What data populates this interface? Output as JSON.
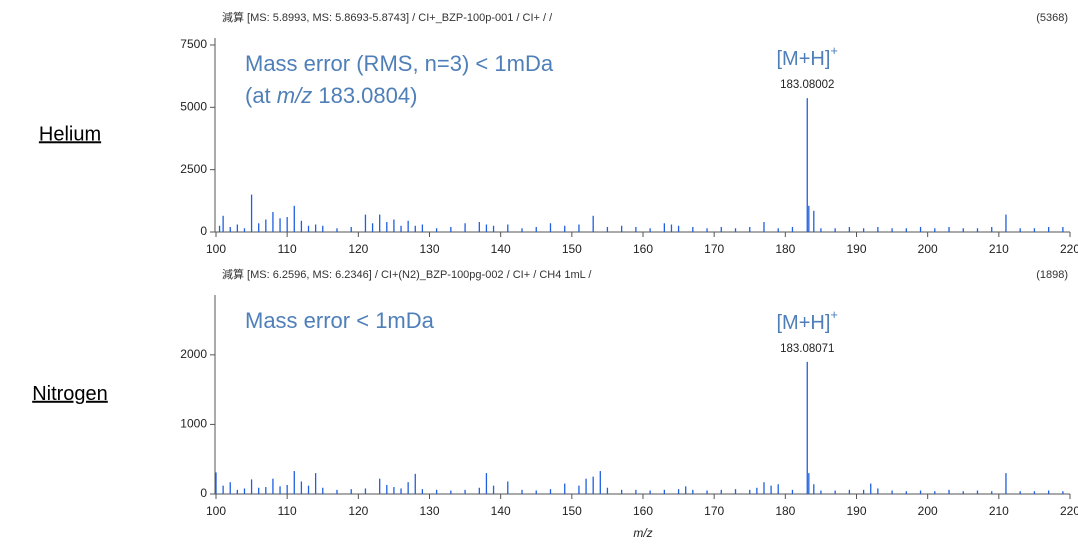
{
  "chart_data": [
    {
      "type": "bar",
      "title": "減算 [MS: 5.8993, MS: 5.8693-5.8743] / CI+_BZP-100p-001 / CI+ /  /",
      "count_label": "(5368)",
      "row_label": "Helium",
      "note": "Mass error (RMS, n=3) < 1mDa",
      "note2": [
        "(at ",
        "m/z",
        " 183.0804)"
      ],
      "ion": "[M+H]",
      "ion_charge": "+",
      "peak_label": "183.08002",
      "color": "#1f5fe0",
      "x": [
        100.5,
        101,
        102,
        103,
        104,
        105,
        106,
        107,
        108,
        109,
        110,
        111,
        112,
        113,
        114,
        115,
        117,
        119,
        121,
        122,
        123,
        124,
        125,
        126,
        127,
        128,
        129,
        131,
        133,
        135,
        137,
        138,
        139,
        141,
        143,
        145,
        147,
        149,
        151,
        153,
        155,
        157,
        159,
        161,
        163,
        164,
        165,
        167,
        169,
        171,
        173,
        175,
        177,
        179,
        181,
        183.08,
        183.3,
        184,
        185,
        187,
        189,
        191,
        193,
        195,
        197,
        199,
        201,
        203,
        205,
        207,
        209,
        211,
        213,
        215,
        217,
        219
      ],
      "values": [
        250,
        650,
        200,
        300,
        150,
        1500,
        350,
        500,
        800,
        550,
        600,
        1050,
        450,
        250,
        300,
        250,
        150,
        200,
        700,
        350,
        700,
        400,
        500,
        250,
        450,
        250,
        300,
        150,
        200,
        350,
        400,
        300,
        250,
        300,
        150,
        200,
        350,
        250,
        300,
        650,
        200,
        250,
        200,
        150,
        350,
        300,
        250,
        200,
        150,
        200,
        150,
        200,
        400,
        150,
        200,
        5368,
        1050,
        850,
        150,
        150,
        200,
        150,
        200,
        150,
        150,
        200,
        150,
        200,
        150,
        150,
        200,
        700,
        150,
        150,
        200,
        200
      ],
      "xlim": [
        100,
        220
      ],
      "ylim": [
        0,
        7780
      ],
      "xticks": [
        100,
        110,
        120,
        130,
        140,
        150,
        160,
        170,
        180,
        190,
        200,
        210,
        220
      ],
      "yticks": [
        0,
        2500,
        5000,
        7500
      ]
    },
    {
      "type": "bar",
      "title": "減算 [MS: 6.2596, MS: 6.2346] / CI+(N2)_BZP-100pg-002 / CI+ / CH4 1mL /",
      "count_label": "(1898)",
      "row_label": "Nitrogen",
      "note": "Mass error < 1mDa",
      "ion": "[M+H]",
      "ion_charge": "+",
      "peak_label": "183.08071",
      "color": "#1f5fe0",
      "x": [
        100,
        101,
        102,
        103,
        104,
        105,
        106,
        107,
        108,
        109,
        110,
        111,
        112,
        113,
        114,
        115,
        117,
        119,
        121,
        123,
        124,
        125,
        126,
        127,
        128,
        129,
        131,
        133,
        135,
        137,
        138,
        139,
        141,
        143,
        145,
        147,
        149,
        151,
        152,
        153,
        154,
        155,
        157,
        159,
        161,
        163,
        165,
        166,
        167,
        169,
        171,
        173,
        175,
        176,
        177,
        178,
        179,
        181,
        183.08,
        183.3,
        184,
        185,
        187,
        189,
        191,
        192,
        193,
        195,
        197,
        199,
        201,
        203,
        205,
        207,
        209,
        211,
        213,
        215,
        217,
        219
      ],
      "values": [
        310,
        120,
        170,
        60,
        80,
        210,
        90,
        100,
        220,
        110,
        130,
        330,
        180,
        120,
        300,
        90,
        60,
        70,
        80,
        220,
        130,
        100,
        80,
        170,
        290,
        70,
        60,
        50,
        60,
        90,
        300,
        120,
        180,
        60,
        50,
        70,
        150,
        120,
        220,
        250,
        330,
        90,
        60,
        60,
        50,
        60,
        70,
        110,
        60,
        50,
        60,
        70,
        60,
        90,
        170,
        120,
        140,
        60,
        1898,
        300,
        140,
        50,
        50,
        60,
        60,
        150,
        80,
        50,
        40,
        50,
        40,
        60,
        40,
        50,
        40,
        300,
        40,
        40,
        50,
        40
      ],
      "xlim": [
        100,
        220
      ],
      "ylim": [
        0,
        2860
      ],
      "xticks": [
        100,
        110,
        120,
        130,
        140,
        150,
        160,
        170,
        180,
        190,
        200,
        210,
        220
      ],
      "yticks": [
        0,
        1000,
        2000
      ],
      "xlabel": "m/z"
    }
  ]
}
